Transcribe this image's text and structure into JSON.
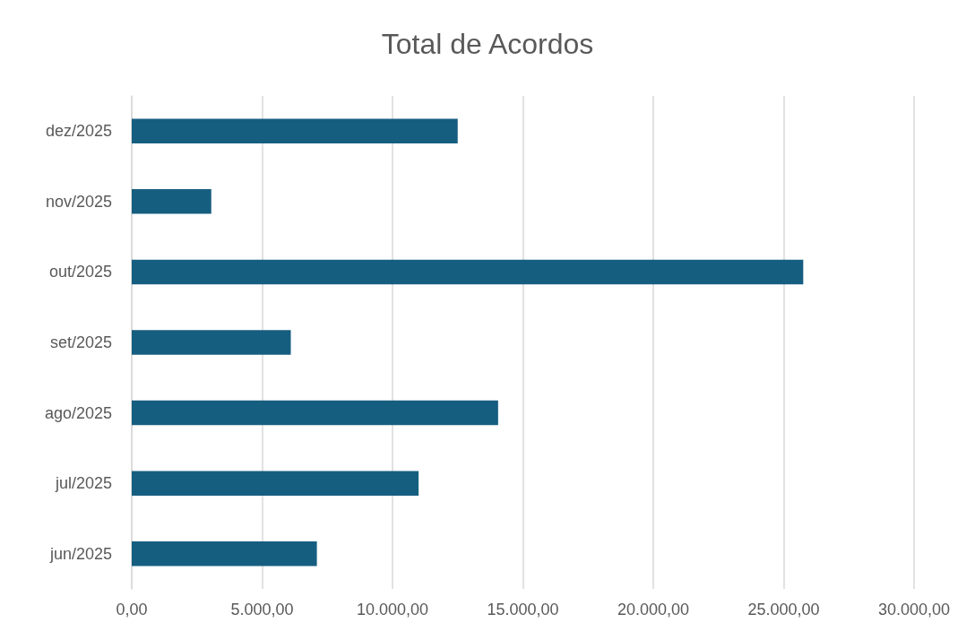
{
  "chart_data": {
    "type": "bar",
    "orientation": "horizontal",
    "title": "Total de Acordos",
    "categories": [
      "dez/2025",
      "nov/2025",
      "out/2025",
      "set/2025",
      "ago/2025",
      "jul/2025",
      "jun/2025"
    ],
    "values": [
      12500,
      3050,
      25750,
      6100,
      14050,
      11000,
      7100
    ],
    "color": "#165e80",
    "xlim": [
      0,
      30000
    ],
    "xticks": [
      {
        "value": 0,
        "label": "0,00"
      },
      {
        "value": 5000,
        "label": "5.000,00"
      },
      {
        "value": 10000,
        "label": "10.000,00"
      },
      {
        "value": 15000,
        "label": "15.000,00"
      },
      {
        "value": 20000,
        "label": "20.000,00"
      },
      {
        "value": 25000,
        "label": "25.000,00"
      },
      {
        "value": 30000,
        "label": "30.000,00"
      }
    ],
    "grid": "x"
  }
}
